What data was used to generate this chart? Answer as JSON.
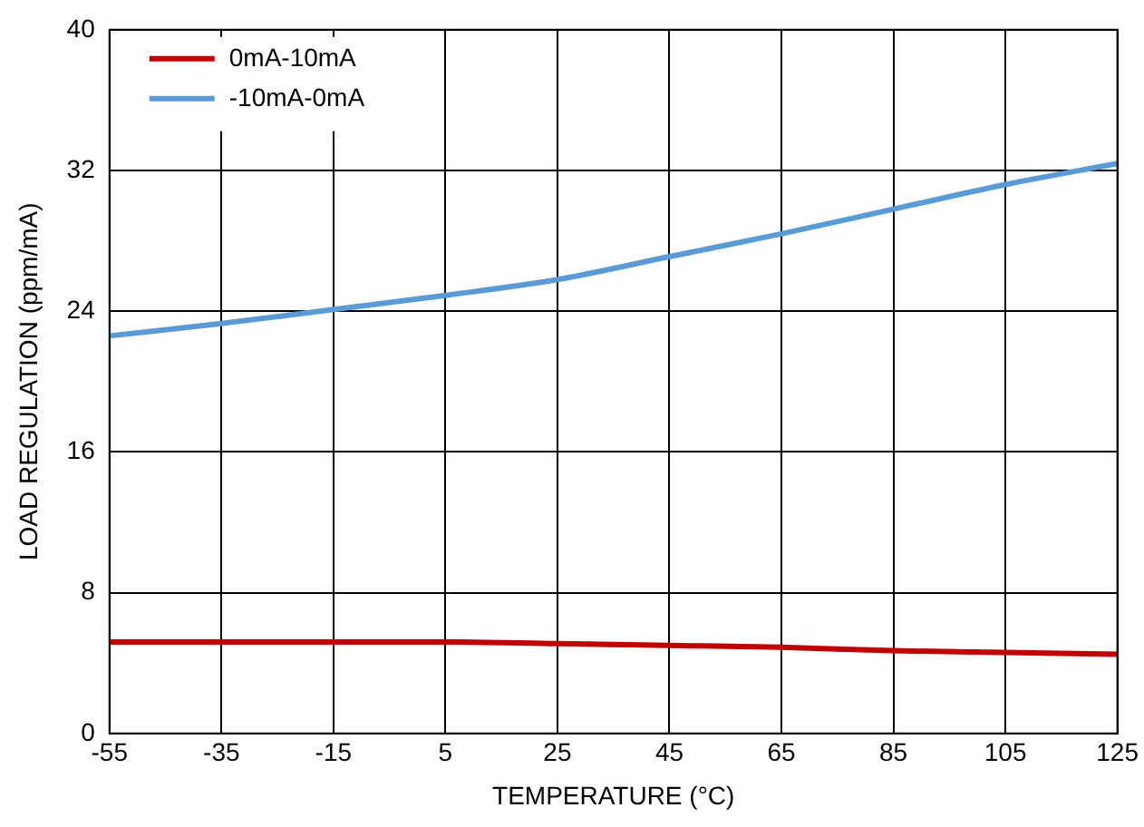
{
  "chart_data": {
    "type": "line",
    "xlabel": "TEMPERATURE (°C)",
    "ylabel": "LOAD REGULATION (ppm/mA)",
    "x": [
      -55,
      -35,
      -15,
      5,
      25,
      45,
      65,
      85,
      105,
      125
    ],
    "series": [
      {
        "name": "0mA-10mA",
        "color": "#c00000",
        "values": [
          5.2,
          5.2,
          5.2,
          5.2,
          5.1,
          5.0,
          4.9,
          4.7,
          4.6,
          4.5
        ]
      },
      {
        "name": "-10mA-0mA",
        "color": "#5b9bd5",
        "values": [
          22.6,
          23.3,
          24.1,
          24.9,
          25.8,
          27.1,
          28.4,
          29.8,
          31.2,
          32.4
        ]
      }
    ],
    "xlim": [
      -55,
      125
    ],
    "xticks": [
      -55,
      -35,
      -15,
      5,
      25,
      45,
      65,
      85,
      105,
      125
    ],
    "ylim": [
      0,
      40
    ],
    "yticks": [
      0,
      8,
      16,
      24,
      32,
      40
    ],
    "grid": true,
    "legend": "top left",
    "marker": "none",
    "line_style": "solid"
  }
}
